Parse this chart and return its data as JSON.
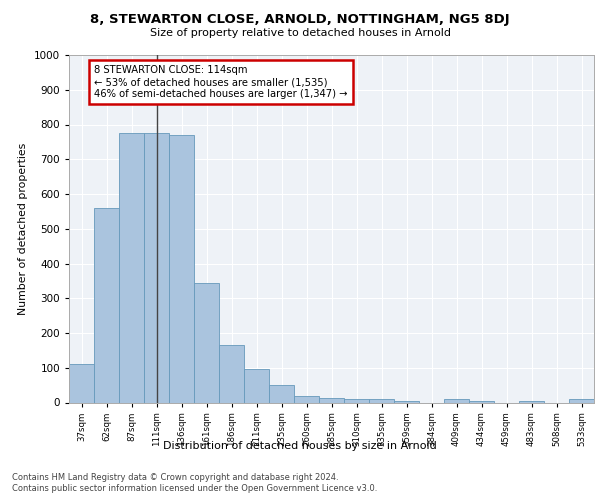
{
  "title": "8, STEWARTON CLOSE, ARNOLD, NOTTINGHAM, NG5 8DJ",
  "subtitle": "Size of property relative to detached houses in Arnold",
  "xlabel": "Distribution of detached houses by size in Arnold",
  "ylabel": "Number of detached properties",
  "categories": [
    "37sqm",
    "62sqm",
    "87sqm",
    "111sqm",
    "136sqm",
    "161sqm",
    "186sqm",
    "211sqm",
    "235sqm",
    "260sqm",
    "285sqm",
    "310sqm",
    "335sqm",
    "359sqm",
    "384sqm",
    "409sqm",
    "434sqm",
    "459sqm",
    "483sqm",
    "508sqm",
    "533sqm"
  ],
  "values": [
    112,
    560,
    775,
    775,
    770,
    345,
    165,
    97,
    50,
    18,
    12,
    10,
    10,
    5,
    0,
    10,
    5,
    0,
    5,
    0,
    10
  ],
  "bar_color": "#aac4de",
  "bar_edge_color": "#6699bb",
  "highlight_index": 3,
  "highlight_line_color": "#444444",
  "annotation_line1": "8 STEWARTON CLOSE: 114sqm",
  "annotation_line2": "← 53% of detached houses are smaller (1,535)",
  "annotation_line3": "46% of semi-detached houses are larger (1,347) →",
  "annotation_box_color": "#ffffff",
  "annotation_box_edge_color": "#cc0000",
  "ylim": [
    0,
    1000
  ],
  "yticks": [
    0,
    100,
    200,
    300,
    400,
    500,
    600,
    700,
    800,
    900,
    1000
  ],
  "background_color": "#eef2f7",
  "footer_line1": "Contains HM Land Registry data © Crown copyright and database right 2024.",
  "footer_line2": "Contains public sector information licensed under the Open Government Licence v3.0."
}
